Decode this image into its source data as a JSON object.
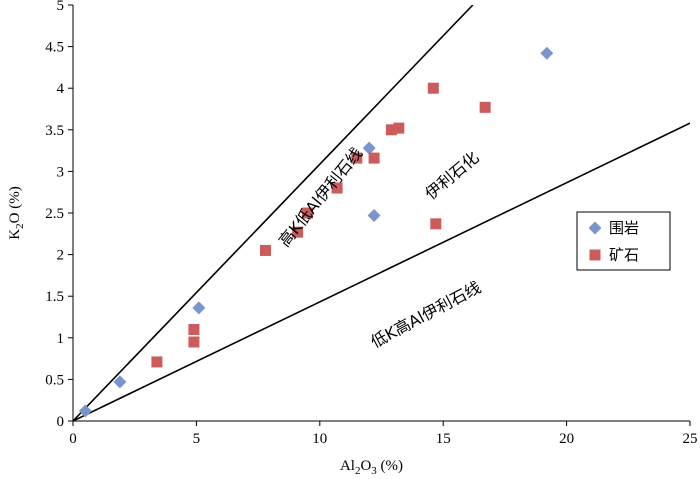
{
  "chart_data": {
    "type": "scatter",
    "title": "",
    "xlabel": "Al₂O₃ (%)",
    "ylabel": "K₂O (%)",
    "xlim": [
      0,
      25
    ],
    "ylim": [
      0,
      5
    ],
    "xticks": [
      "0",
      "5",
      "10",
      "15",
      "20",
      "25"
    ],
    "yticks": [
      "0",
      "0.5",
      "1",
      "1.5",
      "2",
      "2.5",
      "3",
      "3.5",
      "4",
      "4.5",
      "5"
    ],
    "grid": false,
    "legend_position": "right",
    "series": [
      {
        "name": "围岩",
        "marker": "diamond",
        "color": "#7896CC",
        "points": [
          [
            0.5,
            0.12
          ],
          [
            1.9,
            0.47
          ],
          [
            5.1,
            1.36
          ],
          [
            12.0,
            3.28
          ],
          [
            12.2,
            2.47
          ],
          [
            19.2,
            4.42
          ]
        ]
      },
      {
        "name": "矿石",
        "marker": "square",
        "color": "#CC5C5C",
        "points": [
          [
            3.4,
            0.71
          ],
          [
            4.9,
            1.1
          ],
          [
            4.9,
            0.95
          ],
          [
            7.8,
            2.05
          ],
          [
            9.1,
            2.27
          ],
          [
            9.5,
            2.5
          ],
          [
            10.7,
            2.8
          ],
          [
            11.5,
            3.16
          ],
          [
            12.2,
            3.16
          ],
          [
            12.9,
            3.5
          ],
          [
            13.2,
            3.52
          ],
          [
            14.6,
            4.0
          ],
          [
            14.7,
            2.37
          ],
          [
            16.7,
            3.77
          ]
        ]
      }
    ],
    "reference_lines": [
      {
        "name": "high-k-line",
        "x": [
          0,
          16.2
        ],
        "y": [
          0,
          5.0
        ]
      },
      {
        "name": "low-k-line",
        "x": [
          0,
          25
        ],
        "y": [
          0,
          3.58
        ]
      }
    ],
    "annotations": [
      {
        "name": "high-k-label",
        "text": "高K低Al伊利石线",
        "x": 10.2,
        "y": 2.65,
        "angle": -51
      },
      {
        "name": "mid-label",
        "text": "伊利石化",
        "x": 15.5,
        "y": 2.9,
        "angle": -40
      },
      {
        "name": "low-k-label",
        "text": "低K高Al伊利石线",
        "x": 14.4,
        "y": 1.22,
        "angle": -28
      }
    ]
  }
}
